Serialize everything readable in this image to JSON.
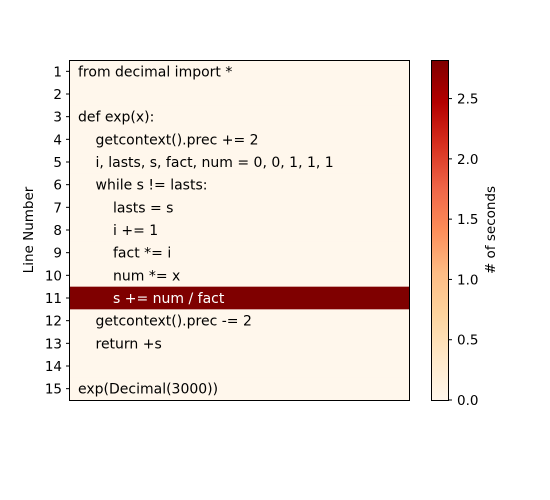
{
  "chart_data": {
    "type": "heatmap",
    "title": "",
    "xlabel": "",
    "ylabel": "Line Number",
    "colorbar": {
      "label": "# of seconds",
      "range": [
        0,
        2.82
      ],
      "ticks": [
        "0.0",
        "0.5",
        "1.0",
        "1.5",
        "2.0",
        "2.5"
      ],
      "tick_values": [
        0,
        0.5,
        1.0,
        1.5,
        2.0,
        2.5
      ],
      "colormap": "OrRd",
      "low_color": "#fff7ec",
      "high_color": "#7f0000"
    },
    "rows": [
      {
        "line": "1",
        "code": "from decimal import *",
        "indent": 0,
        "value": 0
      },
      {
        "line": "2",
        "code": "",
        "indent": 0,
        "value": 0
      },
      {
        "line": "3",
        "code": "def exp(x):",
        "indent": 0,
        "value": 0
      },
      {
        "line": "4",
        "code": "getcontext().prec += 2",
        "indent": 1,
        "value": 0
      },
      {
        "line": "5",
        "code": "i, lasts, s, fact, num = 0, 0, 1, 1, 1",
        "indent": 1,
        "value": 0
      },
      {
        "line": "6",
        "code": "while s != lasts:",
        "indent": 1,
        "value": 0
      },
      {
        "line": "7",
        "code": "lasts = s",
        "indent": 2,
        "value": 0
      },
      {
        "line": "8",
        "code": "i += 1",
        "indent": 2,
        "value": 0
      },
      {
        "line": "9",
        "code": "fact *= i",
        "indent": 2,
        "value": 0
      },
      {
        "line": "10",
        "code": "num *= x",
        "indent": 2,
        "value": 0
      },
      {
        "line": "11",
        "code": "s += num / fact",
        "indent": 2,
        "value": 2.82
      },
      {
        "line": "12",
        "code": "getcontext().prec -= 2",
        "indent": 1,
        "value": 0
      },
      {
        "line": "13",
        "code": "return +s",
        "indent": 1,
        "value": 0
      },
      {
        "line": "14",
        "code": "",
        "indent": 0,
        "value": 0
      },
      {
        "line": "15",
        "code": "exp(Decimal(3000))",
        "indent": 0,
        "value": 0
      }
    ]
  }
}
